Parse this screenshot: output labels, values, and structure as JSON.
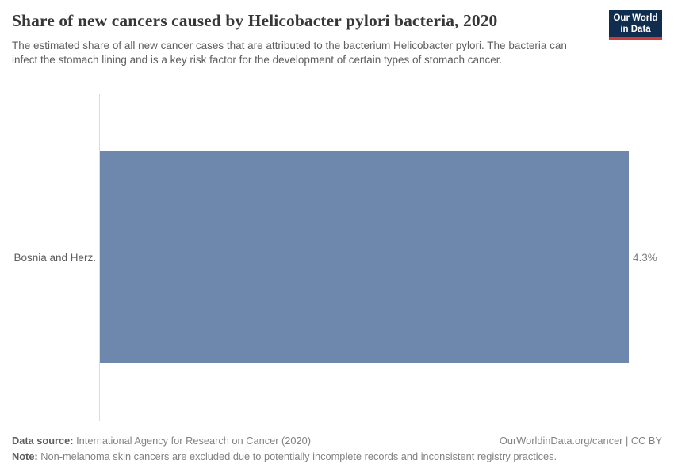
{
  "header": {
    "title": "Share of new cancers caused by Helicobacter pylori bacteria, 2020",
    "subtitle": "The estimated share of all new cancer cases that are attributed to the bacterium Helicobacter pylori. The bacteria can infect the stomach lining and is a key risk factor for the development of certain types of stomach cancer.",
    "logo": {
      "line1": "Our World",
      "line2": "in Data",
      "background": "#102d50",
      "accent": "#d23a3a"
    }
  },
  "chart_data": {
    "type": "bar",
    "orientation": "horizontal",
    "title": "Share of new cancers caused by Helicobacter pylori bacteria, 2020",
    "categories": [
      "Bosnia and Herz."
    ],
    "values": [
      4.3
    ],
    "value_labels": [
      "4.3%"
    ],
    "xlabel": "",
    "ylabel": "",
    "xlim": [
      0,
      4.3
    ],
    "grid": false,
    "legend": "none",
    "bar_color": "#6d87ad",
    "axis_color": "#dcdcdc"
  },
  "footer": {
    "data_source_label": "Data source:",
    "data_source": "International Agency for Research on Cancer (2020)",
    "attribution": "OurWorldinData.org/cancer | CC BY",
    "note_label": "Note:",
    "note": "Non-melanoma skin cancers are excluded due to potentially incomplete records and inconsistent registry practices."
  }
}
